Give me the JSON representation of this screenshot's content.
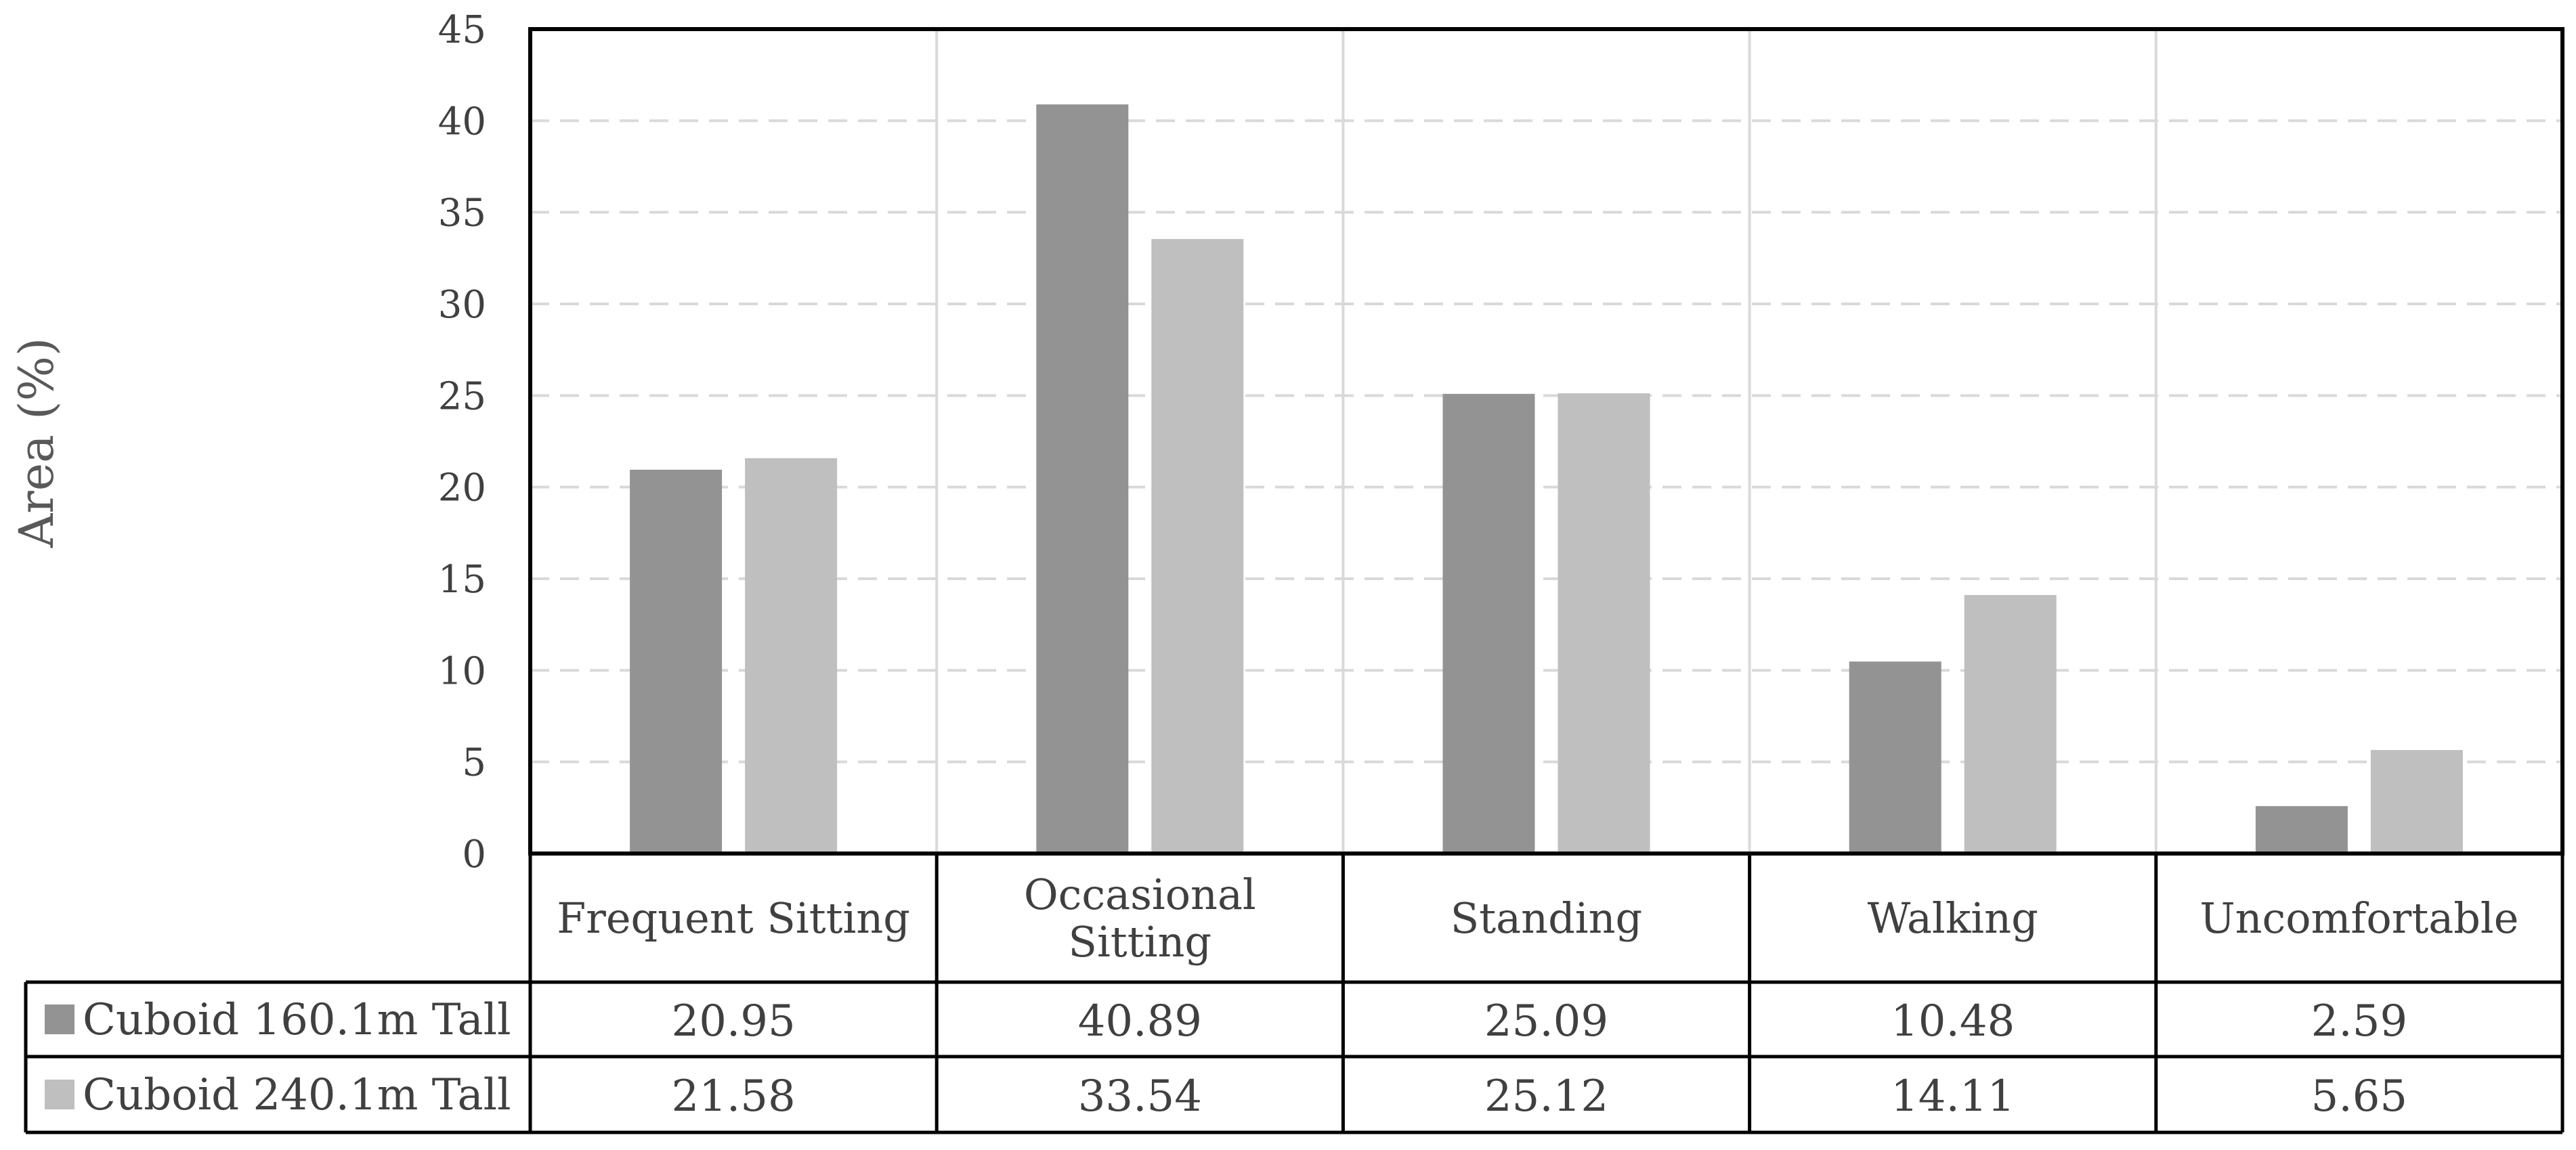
{
  "chart_data": {
    "type": "bar",
    "categories": [
      "Frequent Sitting",
      "Occasional Sitting",
      "Standing",
      "Walking",
      "Uncomfortable"
    ],
    "category_lines": [
      [
        "Frequent Sitting"
      ],
      [
        "Occasional",
        "Sitting"
      ],
      [
        "Standing"
      ],
      [
        "Walking"
      ],
      [
        "Uncomfortable"
      ]
    ],
    "series": [
      {
        "name": "Cuboid 160.1m Tall",
        "color": "#939393",
        "values": [
          20.95,
          40.89,
          25.09,
          10.48,
          2.59
        ]
      },
      {
        "name": "Cuboid 240.1m Tall",
        "color": "#bfbfbf",
        "values": [
          21.58,
          33.54,
          25.12,
          14.11,
          5.65
        ]
      }
    ],
    "ylabel": "Area (%)",
    "ylim": [
      0,
      45
    ],
    "yticks": [
      0,
      5,
      10,
      15,
      20,
      25,
      30,
      35,
      40,
      45
    ],
    "grid": "horizontal dashed",
    "legend": "data table below chart"
  }
}
